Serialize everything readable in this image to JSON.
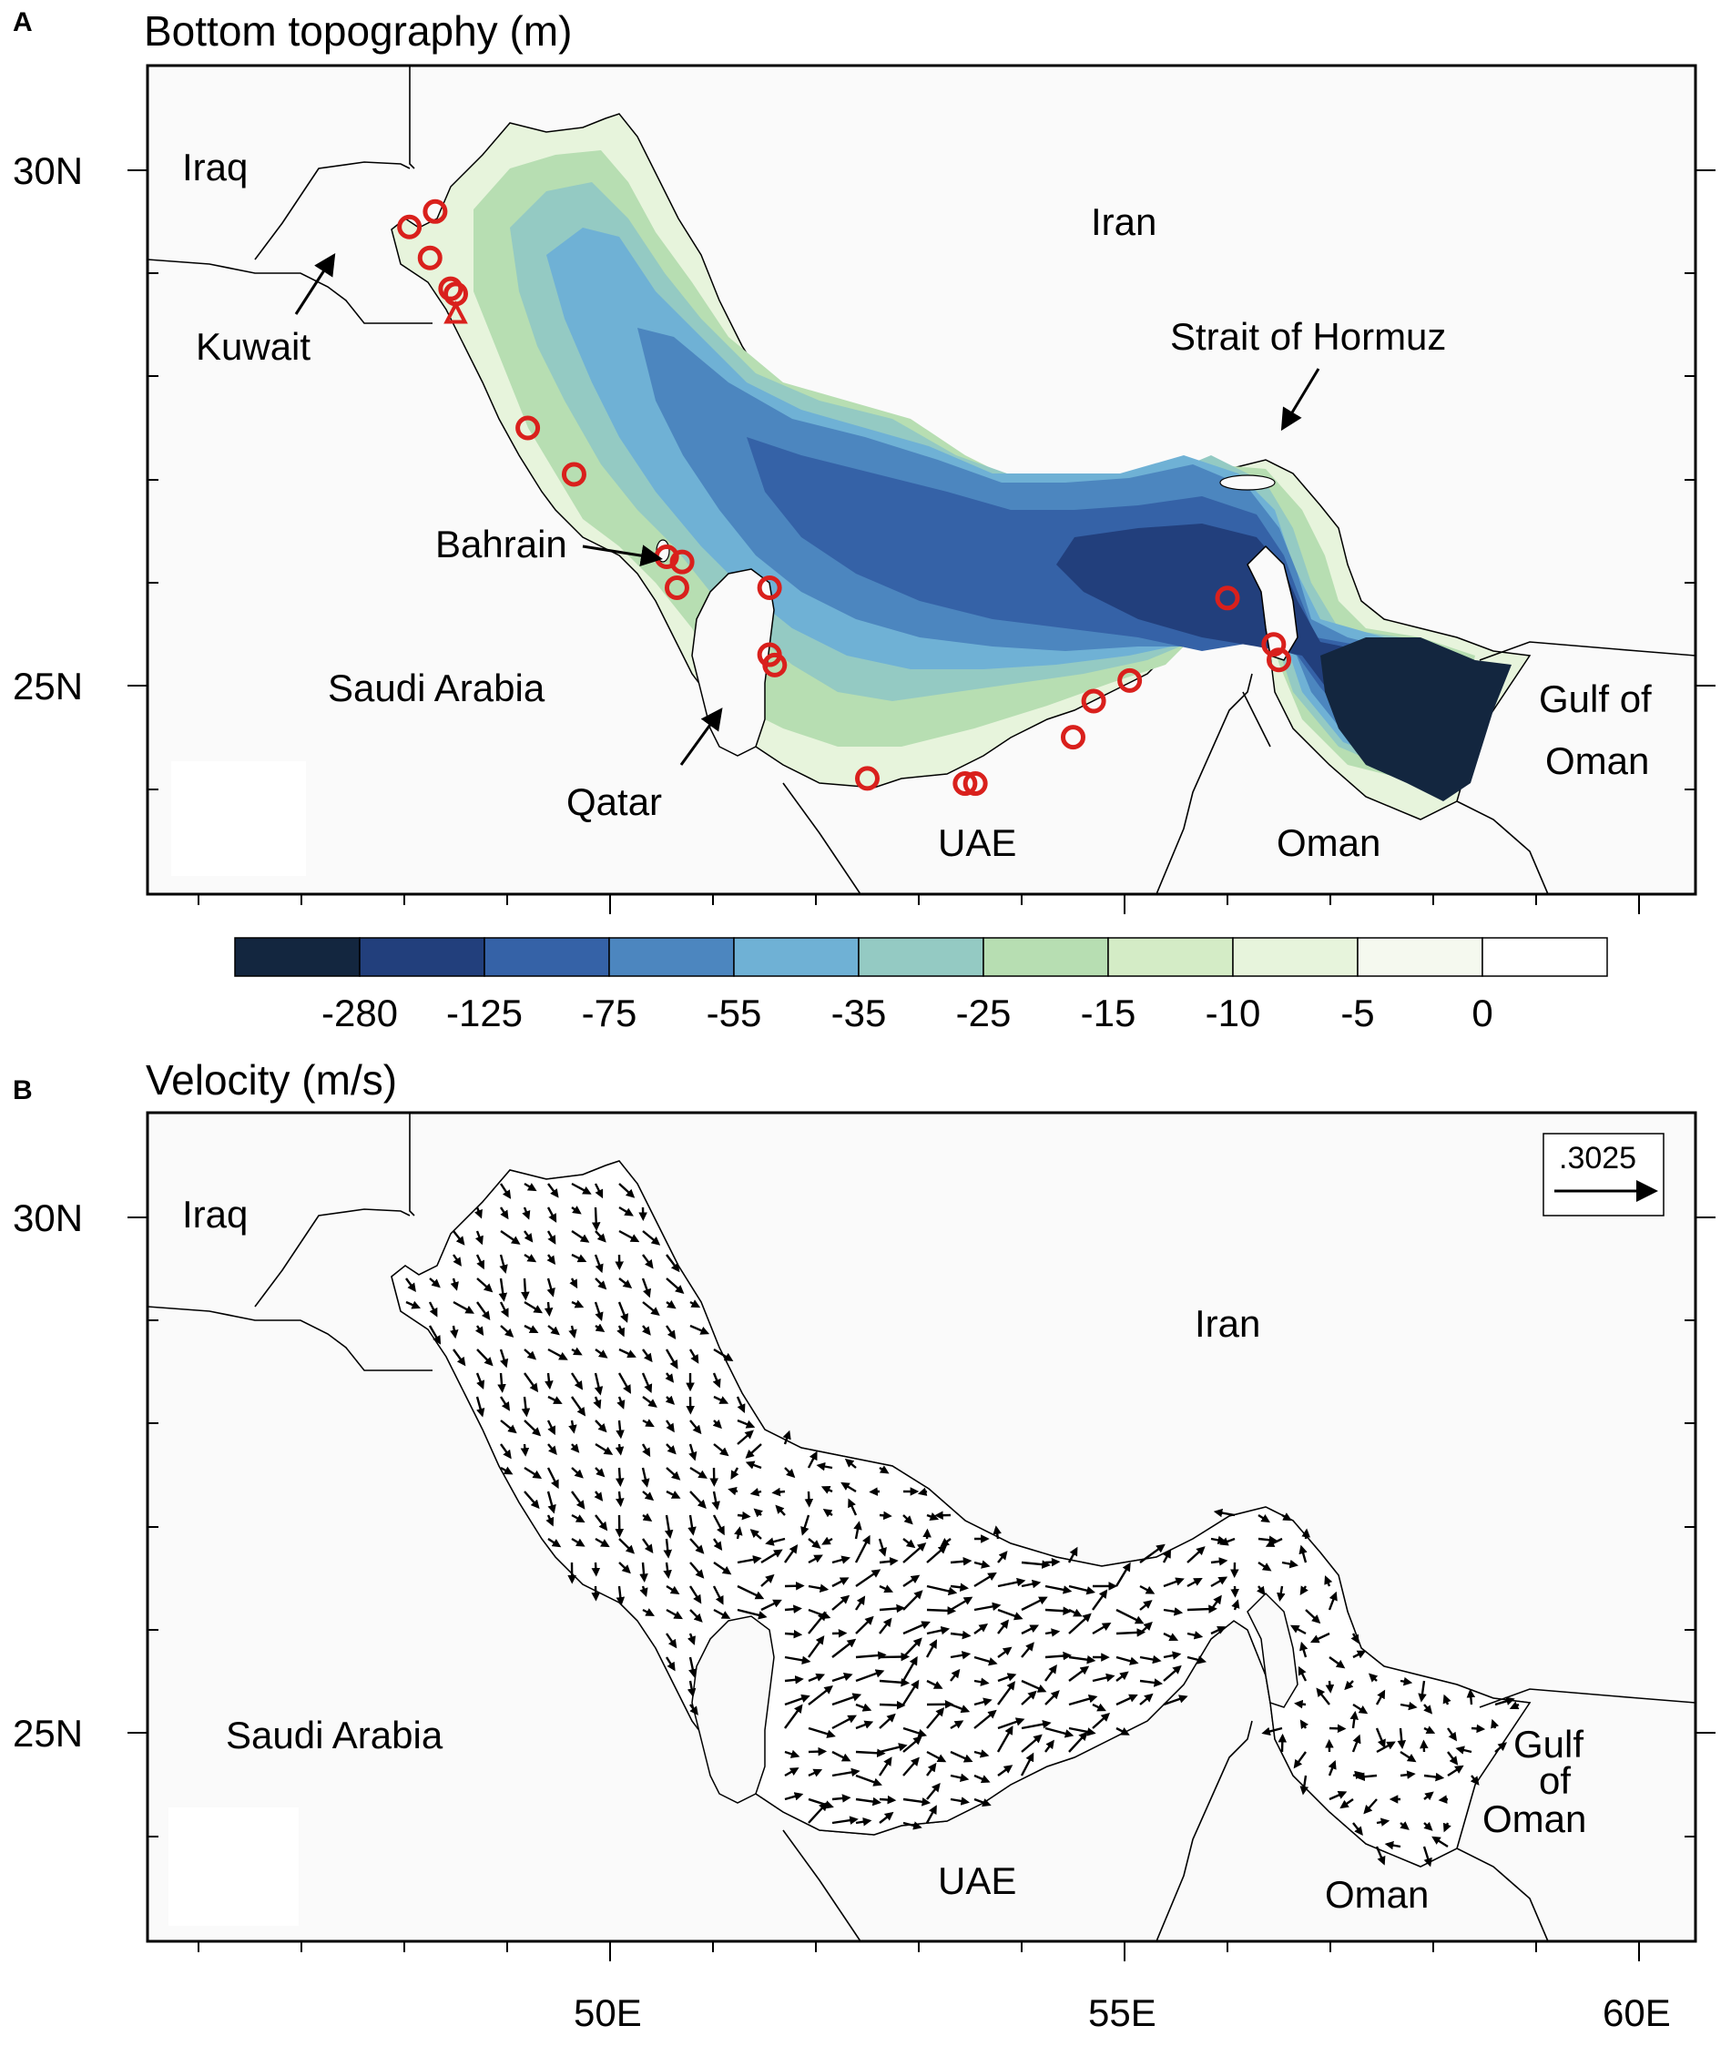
{
  "panels": {
    "a": {
      "letter": "A",
      "title": "Bottom topography (m)"
    },
    "b": {
      "letter": "B",
      "title": "Velocity (m/s)"
    }
  },
  "axes": {
    "lat_labels": [
      "30N",
      "25N"
    ],
    "lon_labels": [
      "50E",
      "55E",
      "60E"
    ]
  },
  "places": {
    "iraq": "Iraq",
    "kuwait": "Kuwait",
    "iran": "Iran",
    "strait": "Strait of Hormuz",
    "bahrain": "Bahrain",
    "saudi": "Saudi Arabia",
    "qatar": "Qatar",
    "uae": "UAE",
    "oman": "Oman",
    "gulf_oman_a": [
      "Gulf of",
      "Oman"
    ],
    "gulf_oman_b": [
      "Gulf",
      "of",
      "Oman"
    ]
  },
  "colorbar": {
    "labels": [
      "-280",
      "-125",
      "-75",
      "-55",
      "-35",
      "-25",
      "-15",
      "-10",
      "-5",
      "0"
    ],
    "colors": [
      "#13263f",
      "#223f7c",
      "#3562a7",
      "#4c86bf",
      "#6fb1d5",
      "#94cac3",
      "#b7deb2",
      "#d4ecc6",
      "#e7f4dc",
      "#f5f9ef",
      "#ffffff"
    ]
  },
  "reference_vector": {
    "label": ".3025"
  },
  "chart_data": {
    "type": "map",
    "lon_range": [
      46,
      60.5
    ],
    "lat_range": [
      23,
      31
    ],
    "land_color": "#fafafa",
    "marker_color": "#d9201c",
    "stations": [
      {
        "lon": 48.05,
        "lat": 29.45
      },
      {
        "lon": 48.3,
        "lat": 29.6
      },
      {
        "lon": 48.25,
        "lat": 29.15
      },
      {
        "lon": 48.45,
        "lat": 28.85
      },
      {
        "lon": 48.5,
        "lat": 28.8
      },
      {
        "lon": 49.2,
        "lat": 27.5
      },
      {
        "lon": 49.65,
        "lat": 27.05
      },
      {
        "lon": 50.55,
        "lat": 26.25
      },
      {
        "lon": 50.7,
        "lat": 26.2
      },
      {
        "lon": 50.65,
        "lat": 25.95
      },
      {
        "lon": 51.55,
        "lat": 25.95
      },
      {
        "lon": 51.55,
        "lat": 25.3
      },
      {
        "lon": 51.6,
        "lat": 25.2
      },
      {
        "lon": 52.5,
        "lat": 24.1
      },
      {
        "lon": 53.45,
        "lat": 24.05
      },
      {
        "lon": 53.55,
        "lat": 24.05
      },
      {
        "lon": 54.5,
        "lat": 24.5
      },
      {
        "lon": 54.7,
        "lat": 24.85
      },
      {
        "lon": 55.05,
        "lat": 25.05
      },
      {
        "lon": 56.0,
        "lat": 25.85
      },
      {
        "lon": 56.45,
        "lat": 25.4
      },
      {
        "lon": 56.5,
        "lat": 25.25
      }
    ],
    "triangle_station": {
      "lon": 48.5,
      "lat": 28.6
    }
  }
}
